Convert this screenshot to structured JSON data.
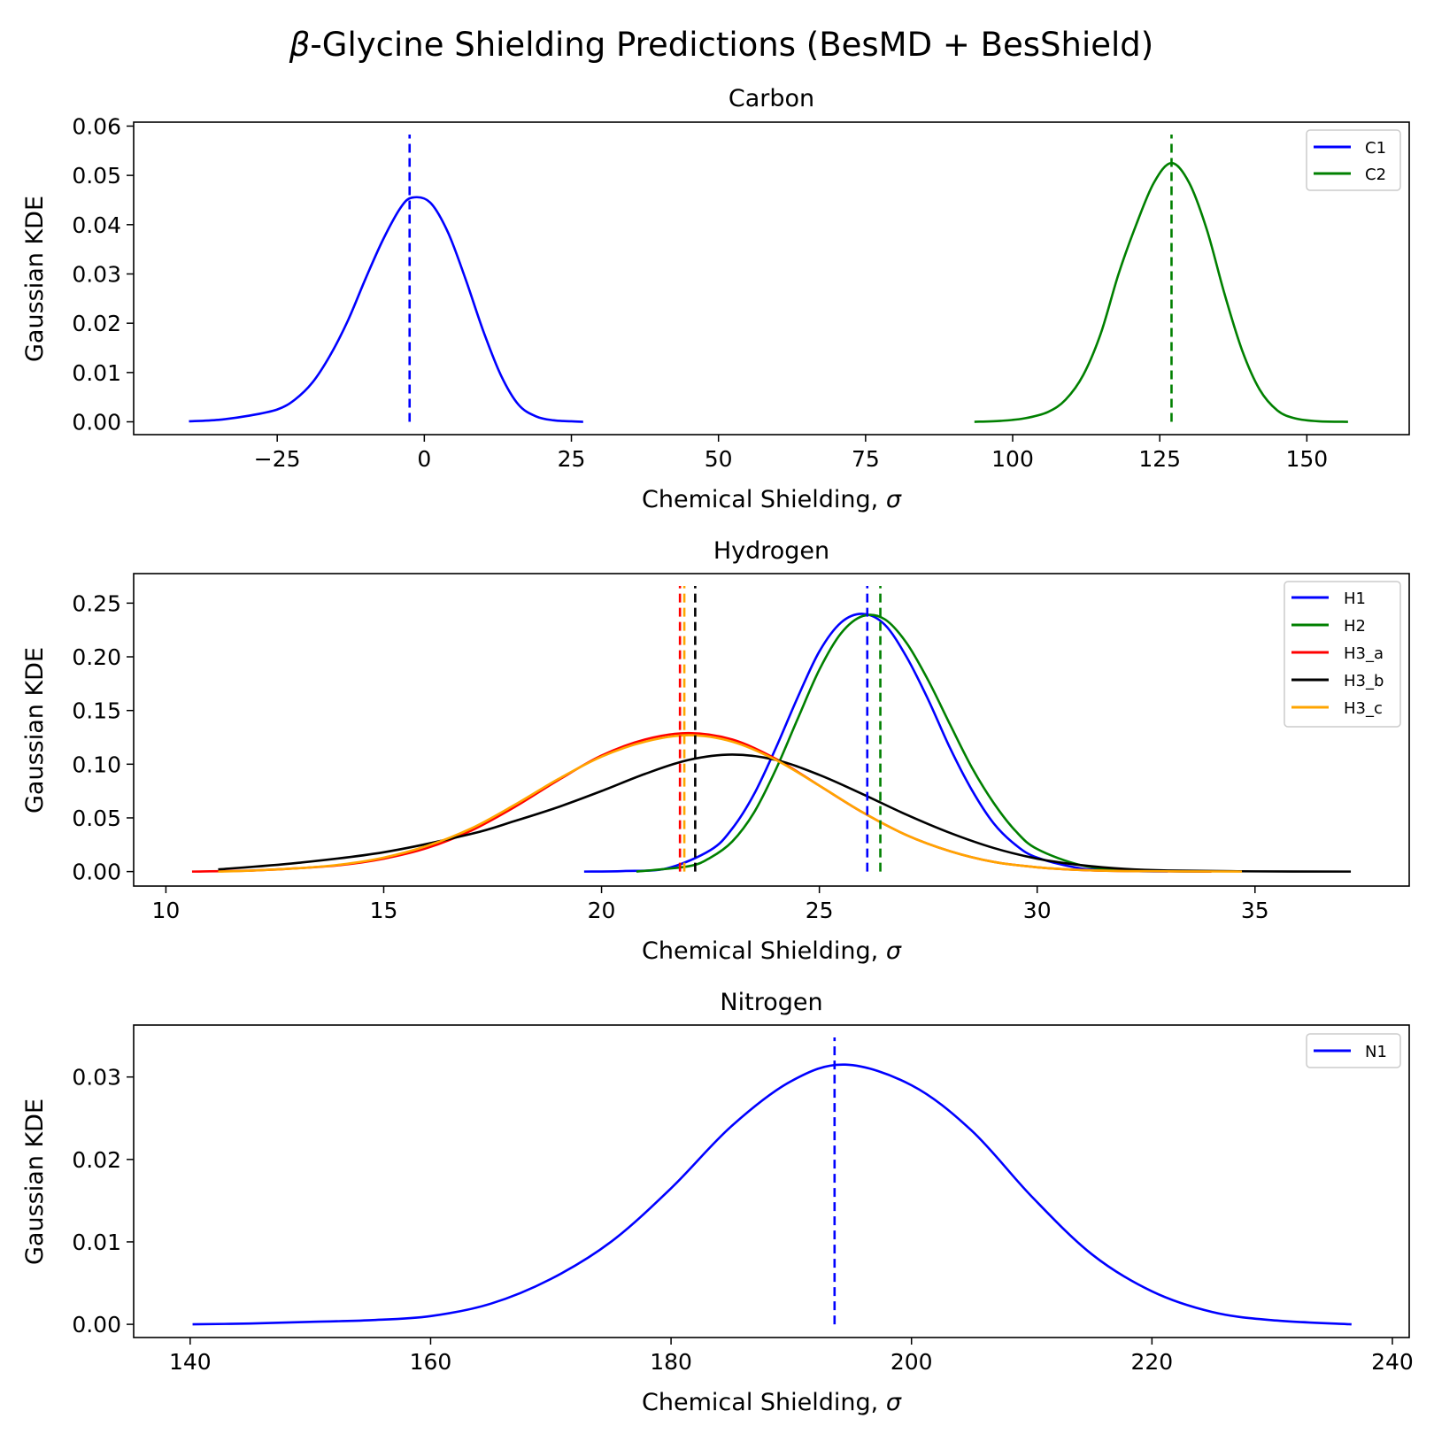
{
  "figure": {
    "title_prefix": "β",
    "title_rest": "-Glycine Shielding Predictions (BesMD + BesShield)"
  },
  "chart_data": [
    {
      "type": "line",
      "title": "Carbon",
      "xlabel": "Chemical Shielding, ",
      "xlabel_symbol": "σ",
      "ylabel": "Gaussian KDE",
      "xlim": [
        -49.4,
        167.4
      ],
      "ylim": [
        -0.0026,
        0.0608
      ],
      "xticks": [
        -25,
        0,
        25,
        50,
        75,
        100,
        125,
        150
      ],
      "xtick_labels": [
        "−25",
        "0",
        "25",
        "50",
        "75",
        "100",
        "125",
        "150"
      ],
      "yticks": [
        0.0,
        0.01,
        0.02,
        0.03,
        0.04,
        0.05,
        0.06
      ],
      "ytick_labels": [
        "0.00",
        "0.01",
        "0.02",
        "0.03",
        "0.04",
        "0.05",
        "0.06"
      ],
      "grid": false,
      "legend_position": "top-right",
      "series": [
        {
          "name": "C1",
          "color": "#0000ff",
          "x": [
            -40,
            -35,
            -30,
            -25,
            -22,
            -19,
            -16,
            -13,
            -10,
            -7,
            -4,
            -2,
            1,
            4,
            7,
            10,
            13,
            16,
            19,
            22,
            25,
            27
          ],
          "y": [
            0.0001,
            0.0004,
            0.0012,
            0.0025,
            0.0045,
            0.008,
            0.0135,
            0.0205,
            0.029,
            0.037,
            0.0435,
            0.0455,
            0.0445,
            0.0385,
            0.029,
            0.0185,
            0.0095,
            0.0035,
            0.0011,
            0.0003,
            0.0001,
            0.0
          ],
          "mean": -2.5
        },
        {
          "name": "C2",
          "color": "#008000",
          "x": [
            93.5,
            98,
            102,
            106,
            109,
            112,
            115,
            118,
            121,
            124,
            127,
            130,
            133,
            136,
            139,
            142,
            145,
            148,
            152,
            157
          ],
          "y": [
            0.0,
            0.0002,
            0.0007,
            0.002,
            0.0045,
            0.0095,
            0.018,
            0.03,
            0.04,
            0.0485,
            0.0525,
            0.0485,
            0.039,
            0.026,
            0.0145,
            0.0065,
            0.0023,
            0.0007,
            0.0001,
            0.0
          ],
          "mean": 127
        }
      ]
    },
    {
      "type": "line",
      "title": "Hydrogen",
      "xlabel": "Chemical Shielding, ",
      "xlabel_symbol": "σ",
      "ylabel": "Gaussian KDE",
      "xlim": [
        9.26,
        38.54
      ],
      "ylim": [
        -0.0135,
        0.2775
      ],
      "xticks": [
        10,
        15,
        20,
        25,
        30,
        35
      ],
      "xtick_labels": [
        "10",
        "15",
        "20",
        "25",
        "30",
        "35"
      ],
      "yticks": [
        0.0,
        0.05,
        0.1,
        0.15,
        0.2,
        0.25
      ],
      "ytick_labels": [
        "0.00",
        "0.05",
        "0.10",
        "0.15",
        "0.20",
        "0.25"
      ],
      "grid": false,
      "legend_position": "top-right",
      "series": [
        {
          "name": "H1",
          "color": "#0000ff",
          "x": [
            19.6,
            20.5,
            21.5,
            22.5,
            23.0,
            23.5,
            24.0,
            24.5,
            25.0,
            25.5,
            26.0,
            26.5,
            27.0,
            27.5,
            28.0,
            28.5,
            29.0,
            29.5,
            30.0,
            31.0,
            32.0,
            33.0
          ],
          "y": [
            0.0,
            0.0005,
            0.003,
            0.02,
            0.04,
            0.072,
            0.115,
            0.162,
            0.205,
            0.232,
            0.24,
            0.23,
            0.2,
            0.16,
            0.115,
            0.076,
            0.045,
            0.025,
            0.013,
            0.003,
            0.0007,
            0.0001
          ],
          "mean": 26.1
        },
        {
          "name": "H2",
          "color": "#008000",
          "x": [
            20.8,
            22.0,
            22.5,
            23.0,
            23.5,
            24.0,
            24.5,
            25.0,
            25.5,
            26.0,
            26.5,
            27.0,
            27.5,
            28.0,
            28.5,
            29.0,
            29.5,
            30.0,
            31.0,
            32.0,
            33.0,
            34.0
          ],
          "y": [
            0.0,
            0.005,
            0.013,
            0.028,
            0.055,
            0.095,
            0.142,
            0.188,
            0.222,
            0.238,
            0.235,
            0.213,
            0.178,
            0.137,
            0.097,
            0.064,
            0.038,
            0.021,
            0.006,
            0.0015,
            0.0003,
            0.0
          ],
          "mean": 26.4
        },
        {
          "name": "H3_a",
          "color": "#ff0000",
          "x": [
            10.6,
            12.0,
            13.0,
            14.0,
            15.0,
            16.0,
            17.0,
            18.0,
            19.0,
            20.0,
            21.0,
            22.0,
            23.0,
            24.0,
            25.0,
            26.0,
            27.0,
            28.0,
            29.0,
            30.0,
            31.0,
            32.0,
            34.0
          ],
          "y": [
            0.0,
            0.001,
            0.003,
            0.006,
            0.012,
            0.022,
            0.038,
            0.06,
            0.085,
            0.108,
            0.123,
            0.129,
            0.123,
            0.105,
            0.08,
            0.055,
            0.034,
            0.019,
            0.009,
            0.004,
            0.0015,
            0.0005,
            0.0
          ],
          "mean": 21.8
        },
        {
          "name": "H3_b",
          "color": "#000000",
          "x": [
            11.2,
            13.0,
            15.0,
            17.0,
            18.0,
            19.0,
            20.0,
            21.0,
            22.0,
            23.0,
            24.0,
            25.0,
            26.0,
            27.0,
            28.0,
            29.0,
            30.0,
            31.0,
            32.0,
            33.0,
            35.0,
            37.2
          ],
          "y": [
            0.002,
            0.008,
            0.018,
            0.035,
            0.047,
            0.06,
            0.075,
            0.091,
            0.104,
            0.109,
            0.104,
            0.09,
            0.072,
            0.053,
            0.036,
            0.022,
            0.012,
            0.006,
            0.0025,
            0.001,
            0.0002,
            0.0
          ],
          "mean": 22.15
        },
        {
          "name": "H3_c",
          "color": "#ffa500",
          "x": [
            11.2,
            12.0,
            13.0,
            14.0,
            15.0,
            16.0,
            17.0,
            18.0,
            19.0,
            20.0,
            21.0,
            22.0,
            23.0,
            24.0,
            25.0,
            26.0,
            27.0,
            28.0,
            29.0,
            30.0,
            31.0,
            32.0,
            34.7
          ],
          "y": [
            0.0,
            0.001,
            0.003,
            0.0065,
            0.013,
            0.024,
            0.04,
            0.062,
            0.086,
            0.107,
            0.121,
            0.127,
            0.121,
            0.104,
            0.08,
            0.055,
            0.034,
            0.019,
            0.009,
            0.004,
            0.0015,
            0.0005,
            0.0
          ],
          "mean": 21.9
        }
      ]
    },
    {
      "type": "line",
      "title": "Nitrogen",
      "xlabel": "Chemical Shielding, ",
      "xlabel_symbol": "σ",
      "ylabel": "Gaussian KDE",
      "xlim": [
        135.3,
        241.4
      ],
      "ylim": [
        -0.0016,
        0.0363
      ],
      "xticks": [
        140,
        160,
        180,
        200,
        220,
        240
      ],
      "xtick_labels": [
        "140",
        "160",
        "180",
        "200",
        "220",
        "240"
      ],
      "yticks": [
        0.0,
        0.01,
        0.02,
        0.03
      ],
      "ytick_labels": [
        "0.00",
        "0.01",
        "0.02",
        "0.03"
      ],
      "grid": false,
      "legend_position": "top-right",
      "series": [
        {
          "name": "N1",
          "color": "#0000ff",
          "x": [
            140.2,
            145,
            150,
            155,
            160,
            165,
            170,
            175,
            180,
            185,
            190,
            194.5,
            200,
            205,
            210,
            215,
            220,
            225,
            230,
            236.6
          ],
          "y": [
            0.0,
            0.0001,
            0.0003,
            0.0005,
            0.001,
            0.0025,
            0.0055,
            0.01,
            0.0165,
            0.024,
            0.0295,
            0.0315,
            0.029,
            0.0235,
            0.0155,
            0.0085,
            0.004,
            0.0015,
            0.0005,
            0.0
          ],
          "mean": 193.6
        }
      ]
    }
  ]
}
